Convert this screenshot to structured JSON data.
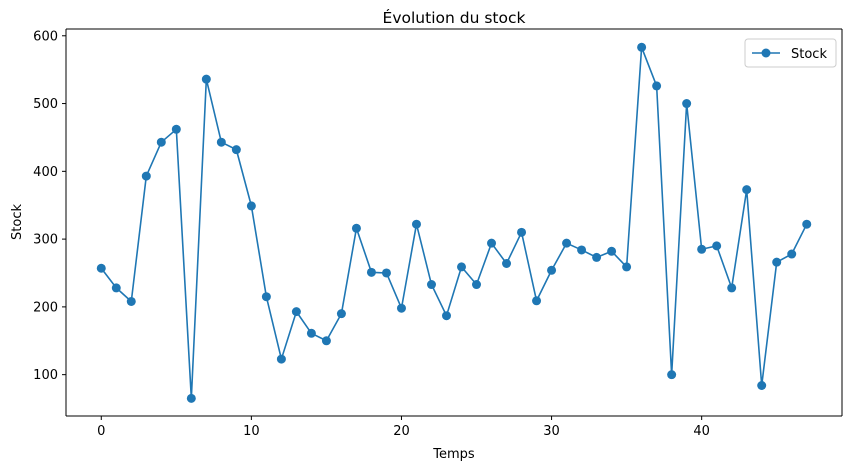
{
  "chart_data": {
    "type": "line",
    "title": "Évolution du stock",
    "xlabel": "Temps",
    "ylabel": "Stock",
    "xlim": [
      -2.35,
      49.35
    ],
    "ylim": [
      39,
      610
    ],
    "xticks": [
      0,
      10,
      20,
      30,
      40
    ],
    "yticks": [
      100,
      200,
      300,
      400,
      500,
      600
    ],
    "grid": false,
    "legend_position": "top-right",
    "series": [
      {
        "name": "Stock",
        "color": "#1f77b4",
        "marker": "circle",
        "x": [
          0,
          1,
          2,
          3,
          4,
          5,
          6,
          7,
          8,
          9,
          10,
          11,
          12,
          13,
          14,
          15,
          16,
          17,
          18,
          19,
          20,
          21,
          22,
          23,
          24,
          25,
          26,
          27,
          28,
          29,
          30,
          31,
          32,
          33,
          34,
          35,
          36,
          37,
          38,
          39,
          40,
          41,
          42,
          43,
          44,
          45,
          46,
          47
        ],
        "values": [
          257,
          228,
          208,
          393,
          443,
          462,
          65,
          536,
          443,
          432,
          349,
          215,
          123,
          193,
          161,
          150,
          190,
          316,
          251,
          250,
          198,
          322,
          233,
          187,
          259,
          233,
          294,
          264,
          310,
          209,
          254,
          294,
          284,
          273,
          282,
          259,
          583,
          526,
          100,
          500,
          285,
          290,
          228,
          373,
          84,
          266,
          278,
          322
        ]
      }
    ]
  }
}
